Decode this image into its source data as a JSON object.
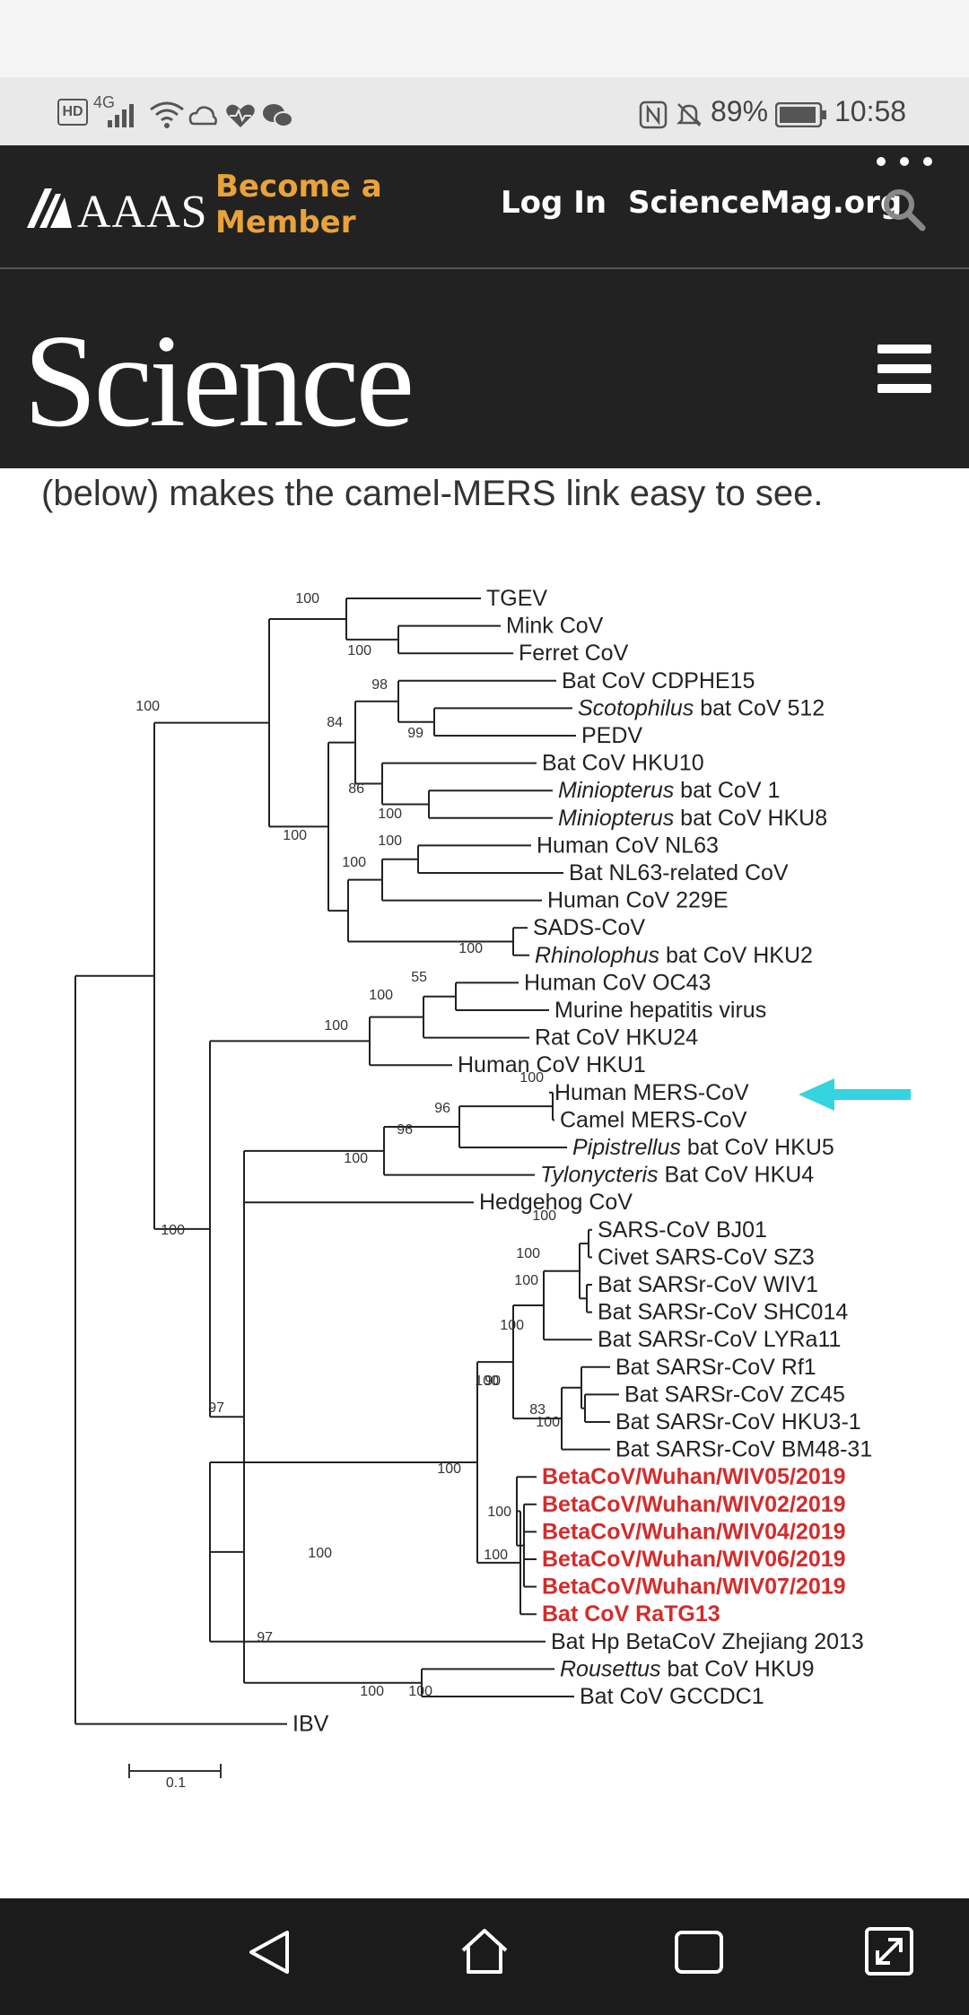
{
  "status_bar": {
    "network": "HD",
    "signal": "4G",
    "battery": "89%",
    "time": "10:58"
  },
  "header": {
    "logo": "AAAS",
    "become_member_line1": "Become a",
    "become_member_line2": "Member",
    "login": "Log In",
    "site": "ScienceMag.org",
    "brand": "Science"
  },
  "intro": "(below) makes the camel-MERS link easy to see.",
  "tree": {
    "taxa": [
      "TGEV",
      "Mink CoV",
      "Ferret CoV",
      "Bat CoV CDPHE15",
      "Scotophilus bat CoV 512",
      "PEDV",
      "Bat CoV HKU10",
      "Miniopterus bat CoV 1",
      "Miniopterus bat CoV HKU8",
      "Human CoV NL63",
      "Bat NL63-related CoV",
      "Human CoV 229E",
      "SADS-CoV",
      "Rhinolophus bat CoV HKU2",
      "Human CoV OC43",
      "Murine hepatitis virus",
      "Rat CoV HKU24",
      "Human CoV HKU1",
      "Human MERS-CoV",
      "Camel MERS-CoV",
      "Pipistrellus bat CoV HKU5",
      "Tylonycteris Bat CoV HKU4",
      "Hedgehog CoV",
      "SARS-CoV BJ01",
      "Civet SARS-CoV SZ3",
      "Bat SARSr-CoV WIV1",
      "Bat SARSr-CoV SHC014",
      "Bat SARSr-CoV LYRa11",
      "Bat SARSr-CoV Rf1",
      "Bat SARSr-CoV ZC45",
      "Bat SARSr-CoV HKU3-1",
      "Bat SARSr-CoV BM48-31",
      "BetaCoV/Wuhan/WIV05/2019",
      "BetaCoV/Wuhan/WIV02/2019",
      "BetaCoV/Wuhan/WIV04/2019",
      "BetaCoV/Wuhan/WIV06/2019",
      "BetaCoV/Wuhan/WIV07/2019",
      "Bat CoV RaTG13",
      "Bat Hp BetaCoV Zhejiang 2013",
      "Rousettus bat CoV HKU9",
      "Bat CoV GCCDC1",
      "IBV"
    ],
    "bootstrap": [
      "100",
      "100",
      "98",
      "100",
      "99",
      "84",
      "86",
      "100",
      "100",
      "100",
      "100",
      "100",
      "55",
      "100",
      "100",
      "100",
      "96",
      "96",
      "100",
      "100",
      "100",
      "100",
      "100",
      "100",
      "100",
      "90",
      "83",
      "100",
      "97",
      "100",
      "100",
      "100",
      "100",
      "97",
      "100",
      "100"
    ],
    "scale": "0.1",
    "highlight_color": "#d52b2b",
    "arrow_color": "#36d3e0"
  },
  "nav": {
    "back": "back-icon",
    "home": "home-icon",
    "recent": "recent-apps-icon",
    "resize": "resize-icon"
  }
}
